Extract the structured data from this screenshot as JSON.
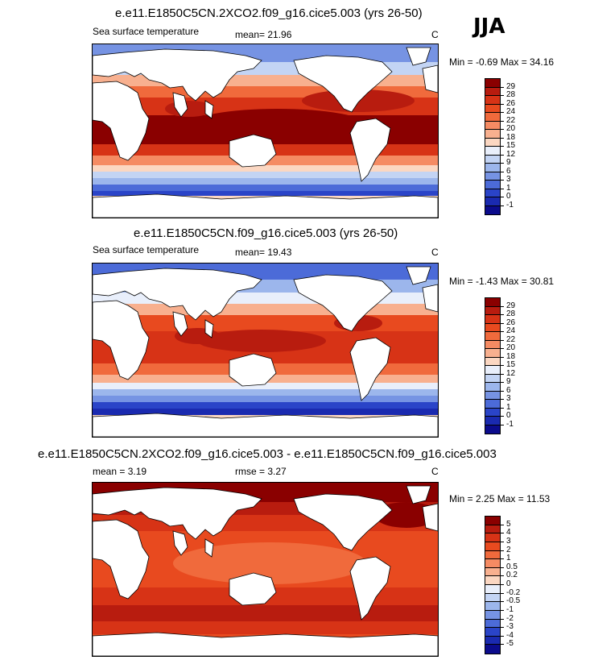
{
  "season": "JJA",
  "panels": [
    {
      "title": "e.e11.E1850C5CN.2XCO2.f09_g16.cice5.003 (yrs 26-50)",
      "variable": "Sea surface temperature",
      "stat1": "mean=  21.96",
      "stat2": "",
      "units": "C",
      "minmax": "Min =  -0.69 Max =  34.16",
      "levels": [
        "29",
        "28",
        "26",
        "24",
        "22",
        "20",
        "18",
        "15",
        "12",
        "9",
        "6",
        "3",
        "1",
        "0",
        "-1"
      ],
      "colors": [
        "#8a0000",
        "#b81c0f",
        "#d73316",
        "#e84a1f",
        "#f06a3c",
        "#f58b63",
        "#f8b08f",
        "#fbd7c2",
        "#e9effb",
        "#c3d4f4",
        "#9cb6ec",
        "#7693e3",
        "#4c6bd8",
        "#2a44c8",
        "#1a2ab0",
        "#0b0b8c"
      ],
      "kind": "warm"
    },
    {
      "title": "e.e11.E1850C5CN.f09_g16.cice5.003 (yrs 26-50)",
      "variable": "Sea surface temperature",
      "stat1": "mean=  19.43",
      "stat2": "",
      "units": "C",
      "minmax": "Min =  -1.43 Max =  30.81",
      "levels": [
        "29",
        "28",
        "26",
        "24",
        "22",
        "20",
        "18",
        "15",
        "12",
        "9",
        "6",
        "3",
        "1",
        "0",
        "-1"
      ],
      "colors": [
        "#8a0000",
        "#b81c0f",
        "#d73316",
        "#e84a1f",
        "#f06a3c",
        "#f58b63",
        "#f8b08f",
        "#fbd7c2",
        "#e9effb",
        "#c3d4f4",
        "#9cb6ec",
        "#7693e3",
        "#4c6bd8",
        "#2a44c8",
        "#1a2ab0",
        "#0b0b8c"
      ],
      "kind": "cool"
    },
    {
      "title": "e.e11.E1850C5CN.2XCO2.f09_g16.cice5.003 - e.e11.E1850C5CN.f09_g16.cice5.003",
      "variable": "",
      "stat1": "mean =   3.19",
      "stat2": "rmse =   3.27",
      "units": "C",
      "minmax": "Min =  2.25 Max =  11.53",
      "levels": [
        "5",
        "4",
        "3",
        "2",
        "1",
        "0.5",
        "0.2",
        "0",
        "-0.2",
        "-0.5",
        "-1",
        "-2",
        "-3",
        "-4",
        "-5"
      ],
      "colors": [
        "#8a0000",
        "#b81c0f",
        "#d73316",
        "#e84a1f",
        "#f06a3c",
        "#f58b63",
        "#f8b08f",
        "#fbd7c2",
        "#e9effb",
        "#c3d4f4",
        "#9cb6ec",
        "#7693e3",
        "#4c6bd8",
        "#2a44c8",
        "#1a2ab0",
        "#0b0b8c"
      ],
      "kind": "diff"
    }
  ]
}
